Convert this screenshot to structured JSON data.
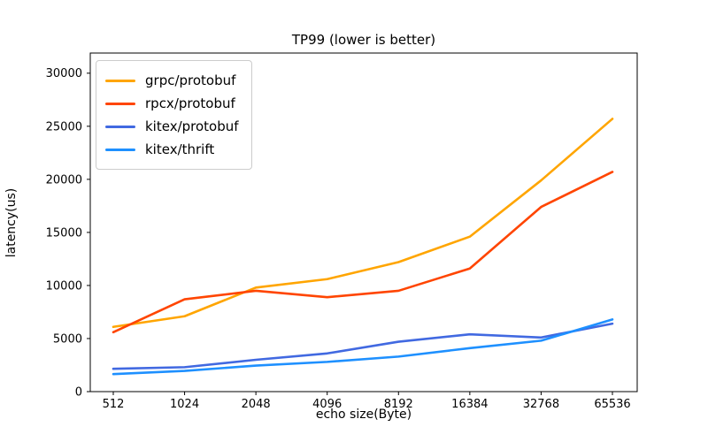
{
  "figure": {
    "background": "#ffffff"
  },
  "chart_data": {
    "type": "line",
    "title": "TP99 (lower is better)",
    "xlabel": "echo size(Byte)",
    "ylabel": "latency(us)",
    "categories": [
      "512",
      "1024",
      "2048",
      "4096",
      "8192",
      "16384",
      "32768",
      "65536"
    ],
    "yticks": [
      0,
      5000,
      10000,
      15000,
      20000,
      25000,
      30000
    ],
    "ylim": [
      0,
      31900
    ],
    "grid": false,
    "legend_position": "upper-left",
    "series": [
      {
        "name": "grpc/protobuf",
        "color": "#FFA500",
        "values": [
          6100,
          7100,
          9800,
          10600,
          12200,
          14600,
          19900,
          25700
        ]
      },
      {
        "name": "rpcx/protobuf",
        "color": "#FF4500",
        "values": [
          5600,
          8700,
          9500,
          8900,
          9500,
          11600,
          17400,
          20700
        ]
      },
      {
        "name": "kitex/protobuf",
        "color": "#4169E1",
        "values": [
          2150,
          2300,
          3000,
          3600,
          4700,
          5400,
          5100,
          6400
        ]
      },
      {
        "name": "kitex/thrift",
        "color": "#1E90FF",
        "values": [
          1650,
          1950,
          2450,
          2800,
          3300,
          4100,
          4800,
          6800
        ]
      }
    ]
  }
}
